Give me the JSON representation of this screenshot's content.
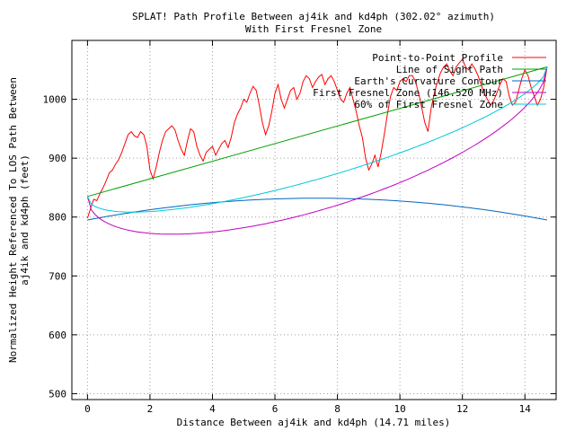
{
  "chart_data": {
    "type": "line",
    "title": "SPLAT! Path Profile Between aj4ik and kd4ph (302.02° azimuth)",
    "subtitle": "With First Fresnel Zone",
    "xlabel": "Distance Between aj4ik and kd4ph (14.71 miles)",
    "ylabel": "Normalized Height Referenced To LOS Path Between",
    "ylabel2": "aj4ik and kd4ph (feet)",
    "xlim": [
      -0.5,
      15.0
    ],
    "ylim": [
      490,
      1100
    ],
    "xticks": [
      0,
      2,
      4,
      6,
      8,
      10,
      12,
      14
    ],
    "yticks": [
      500,
      600,
      700,
      800,
      900,
      1000
    ],
    "grid": true,
    "legend_position": "top-right",
    "series": [
      {
        "name": "Point-to-Point Profile",
        "color": "#ff0000",
        "kind": "profile",
        "x": [
          0.0,
          0.1,
          0.2,
          0.3,
          0.4,
          0.5,
          0.6,
          0.7,
          0.8,
          0.9,
          1.0,
          1.1,
          1.2,
          1.3,
          1.4,
          1.5,
          1.6,
          1.7,
          1.8,
          1.9,
          2.0,
          2.1,
          2.2,
          2.3,
          2.4,
          2.5,
          2.6,
          2.7,
          2.8,
          2.9,
          3.0,
          3.1,
          3.2,
          3.3,
          3.4,
          3.5,
          3.6,
          3.7,
          3.8,
          3.9,
          4.0,
          4.1,
          4.2,
          4.3,
          4.4,
          4.5,
          4.6,
          4.7,
          4.8,
          4.9,
          5.0,
          5.1,
          5.2,
          5.3,
          5.4,
          5.5,
          5.6,
          5.7,
          5.8,
          5.9,
          6.0,
          6.1,
          6.2,
          6.3,
          6.4,
          6.5,
          6.6,
          6.7,
          6.8,
          6.9,
          7.0,
          7.1,
          7.2,
          7.3,
          7.4,
          7.5,
          7.6,
          7.7,
          7.8,
          7.9,
          8.0,
          8.1,
          8.2,
          8.3,
          8.4,
          8.5,
          8.6,
          8.7,
          8.8,
          8.9,
          9.0,
          9.1,
          9.2,
          9.3,
          9.4,
          9.5,
          9.6,
          9.7,
          9.8,
          9.9,
          10.0,
          10.1,
          10.2,
          10.3,
          10.4,
          10.5,
          10.6,
          10.7,
          10.8,
          10.9,
          11.0,
          11.1,
          11.2,
          11.3,
          11.4,
          11.5,
          11.6,
          11.7,
          11.8,
          11.9,
          12.0,
          12.1,
          12.2,
          12.3,
          12.4,
          12.5,
          12.6,
          12.7,
          12.8,
          12.9,
          13.0,
          13.1,
          13.2,
          13.3,
          13.4,
          13.5,
          13.6,
          13.7,
          13.8,
          13.9,
          14.0,
          14.1,
          14.2,
          14.3,
          14.4,
          14.5,
          14.6,
          14.71
        ],
        "y": [
          798,
          815,
          830,
          828,
          840,
          850,
          862,
          875,
          880,
          890,
          898,
          910,
          925,
          940,
          945,
          938,
          935,
          945,
          940,
          920,
          880,
          865,
          885,
          910,
          930,
          945,
          950,
          955,
          948,
          930,
          915,
          905,
          930,
          950,
          945,
          920,
          905,
          895,
          910,
          915,
          920,
          905,
          915,
          925,
          930,
          918,
          935,
          960,
          975,
          985,
          1000,
          995,
          1010,
          1022,
          1015,
          990,
          960,
          940,
          955,
          980,
          1010,
          1025,
          1000,
          985,
          1000,
          1015,
          1020,
          1000,
          1010,
          1030,
          1040,
          1035,
          1020,
          1030,
          1038,
          1042,
          1025,
          1035,
          1040,
          1030,
          1015,
          1000,
          995,
          1010,
          1020,
          1000,
          980,
          955,
          935,
          900,
          880,
          890,
          905,
          885,
          910,
          940,
          975,
          1005,
          1020,
          1015,
          1030,
          1035,
          1030,
          1040,
          1040,
          1030,
          1010,
          985,
          960,
          945,
          985,
          1010,
          1030,
          1045,
          1055,
          1060,
          1048,
          1040,
          1055,
          1062,
          1068,
          1055,
          1050,
          1060,
          1052,
          1040,
          1025,
          1010,
          1000,
          990,
          998,
          1010,
          1025,
          1035,
          1030,
          1005,
          990,
          995,
          1015,
          1035,
          1050,
          1040,
          1020,
          1005,
          990,
          1000,
          1020,
          1055
        ]
      },
      {
        "name": "Line of Sight Path",
        "color": "#00a000",
        "kind": "linear",
        "x": [
          0.0,
          14.71
        ],
        "y": [
          835,
          1055
        ]
      },
      {
        "name": "Earth's Curvature Contour",
        "color": "#0066c0",
        "kind": "arc",
        "x": [
          0.0,
          7.355,
          14.71
        ],
        "y": [
          795,
          832,
          795
        ]
      },
      {
        "name": "First Fresnel Zone (146.520 MHz)",
        "color": "#c000c0",
        "kind": "fresnel",
        "factor": 1.0,
        "x": [
          0.0,
          14.71
        ],
        "y": [
          835,
          1055
        ]
      },
      {
        "name": "60% of First Fresnel Zone",
        "color": "#00c8d8",
        "kind": "fresnel",
        "factor": 0.6,
        "x": [
          0.0,
          14.71
        ],
        "y": [
          835,
          1055
        ]
      }
    ]
  }
}
